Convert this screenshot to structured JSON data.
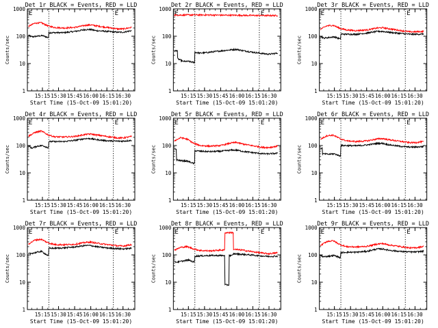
{
  "colors": {
    "events": "#000000",
    "lld": "#ff0000",
    "frame": "#000000",
    "background": "#ffffff"
  },
  "chart_data": [
    {
      "type": "line",
      "title": "Det 1r BLACK = Events, RED = LLD",
      "xlabel": "Start Time (15-Oct-09 15:01:20)",
      "ylabel": "Counts/sec",
      "yscale": "log",
      "ylim": [
        1,
        1000
      ],
      "ytick_labels": [
        "1",
        "10",
        "100",
        "1000"
      ],
      "xlim": [
        "15:01",
        "16:41"
      ],
      "xtick_labels": [
        "15:15",
        "15:30",
        "15:45",
        "16:00",
        "16:15",
        "16:30"
      ],
      "markers": [
        "15:21",
        "16:21"
      ],
      "corner_label": "E",
      "series": [
        {
          "color": "#000000",
          "x": [
            "15:02",
            "15:05",
            "15:10",
            "15:15",
            "15:20",
            "15:21",
            "15:26",
            "15:35",
            "15:45",
            "15:55",
            "16:00",
            "16:05",
            "16:15",
            "16:25",
            "16:30",
            "16:38"
          ],
          "values": [
            110,
            95,
            100,
            105,
            90,
            135,
            135,
            135,
            150,
            175,
            175,
            160,
            150,
            140,
            140,
            160
          ]
        },
        {
          "color": "#ff0000",
          "x": [
            "15:02",
            "15:08",
            "15:14",
            "15:20",
            "15:26",
            "15:35",
            "15:45",
            "15:55",
            "16:00",
            "16:05",
            "16:15",
            "16:25",
            "16:30",
            "16:38"
          ],
          "values": [
            230,
            300,
            310,
            240,
            210,
            200,
            210,
            250,
            260,
            240,
            210,
            185,
            185,
            210
          ]
        }
      ]
    },
    {
      "type": "line",
      "title": "Det 2r BLACK = Events, RED = LLD",
      "xlabel": "Start Time (15-Oct-09 15:01:20)",
      "ylabel": "Counts/sec",
      "yscale": "log",
      "ylim": [
        1,
        1000
      ],
      "ytick_labels": [
        "1",
        "10",
        "100",
        "1000"
      ],
      "xlim": [
        "15:01",
        "16:41"
      ],
      "xtick_labels": [
        "15:15",
        "15:30",
        "15:45",
        "16:00",
        "16:15",
        "16:30"
      ],
      "markers": [
        "15:21",
        "16:21"
      ],
      "corner_label": "E",
      "series": [
        {
          "color": "#000000",
          "x": [
            "15:02",
            "15:04",
            "15:05",
            "15:10",
            "15:15",
            "15:20",
            "15:21",
            "15:26",
            "15:35",
            "15:45",
            "15:55",
            "16:00",
            "16:05",
            "16:15",
            "16:25",
            "16:30",
            "16:38"
          ],
          "values": [
            28,
            30,
            15,
            12,
            12,
            11,
            26,
            24,
            26,
            29,
            32,
            33,
            30,
            26,
            23,
            22,
            24
          ]
        },
        {
          "color": "#ff0000",
          "x": [
            "15:02",
            "15:15",
            "15:30",
            "15:45",
            "16:00",
            "16:15",
            "16:30",
            "16:38"
          ],
          "values": [
            590,
            600,
            600,
            590,
            585,
            575,
            570,
            570
          ]
        }
      ]
    },
    {
      "type": "line",
      "title": "Det 3r BLACK = Events, RED = LLD",
      "xlabel": "Start Time (15-Oct-09 15:01:20)",
      "ylabel": "Counts/sec",
      "yscale": "log",
      "ylim": [
        1,
        1000
      ],
      "ytick_labels": [
        "1",
        "10",
        "100",
        "1000"
      ],
      "xlim": [
        "15:01",
        "16:41"
      ],
      "xtick_labels": [
        "15:15",
        "15:30",
        "15:45",
        "16:00",
        "16:15",
        "16:30"
      ],
      "markers": [
        "15:21",
        "16:21"
      ],
      "corner_label": "E",
      "series": [
        {
          "color": "#000000",
          "x": [
            "15:02",
            "15:05",
            "15:10",
            "15:15",
            "15:20",
            "15:21",
            "15:26",
            "15:35",
            "15:45",
            "15:55",
            "16:00",
            "16:05",
            "16:15",
            "16:25",
            "16:30",
            "16:38"
          ],
          "values": [
            100,
            85,
            90,
            95,
            80,
            120,
            118,
            118,
            130,
            150,
            150,
            140,
            128,
            118,
            118,
            120
          ]
        },
        {
          "color": "#ff0000",
          "x": [
            "15:02",
            "15:08",
            "15:14",
            "15:20",
            "15:26",
            "15:35",
            "15:45",
            "15:55",
            "16:00",
            "16:05",
            "16:15",
            "16:25",
            "16:30",
            "16:38"
          ],
          "values": [
            180,
            240,
            250,
            195,
            170,
            160,
            170,
            200,
            205,
            190,
            165,
            145,
            145,
            150
          ]
        }
      ]
    },
    {
      "type": "line",
      "title": "Det 4r BLACK = Events, RED = LLD",
      "xlabel": "Start Time (15-Oct-09 15:01:20)",
      "ylabel": "Counts/sec",
      "yscale": "log",
      "ylim": [
        1,
        1000
      ],
      "ytick_labels": [
        "1",
        "10",
        "100",
        "1000"
      ],
      "xlim": [
        "15:01",
        "16:41"
      ],
      "xtick_labels": [
        "15:15",
        "15:30",
        "15:45",
        "16:00",
        "16:15",
        "16:30"
      ],
      "markers": [
        "15:21",
        "16:21"
      ],
      "corner_label": "E",
      "series": [
        {
          "color": "#000000",
          "x": [
            "15:02",
            "15:05",
            "15:10",
            "15:15",
            "15:20",
            "15:21",
            "15:26",
            "15:35",
            "15:45",
            "15:55",
            "16:00",
            "16:05",
            "16:15",
            "16:25",
            "16:30",
            "16:38"
          ],
          "values": [
            100,
            80,
            95,
            100,
            85,
            140,
            140,
            140,
            155,
            180,
            180,
            165,
            150,
            145,
            145,
            155
          ]
        },
        {
          "color": "#ff0000",
          "x": [
            "15:02",
            "15:08",
            "15:14",
            "15:20",
            "15:26",
            "15:35",
            "15:45",
            "15:55",
            "16:00",
            "16:05",
            "16:15",
            "16:25",
            "16:30",
            "16:38"
          ],
          "values": [
            220,
            300,
            340,
            250,
            210,
            205,
            215,
            255,
            265,
            245,
            215,
            190,
            190,
            215
          ]
        }
      ]
    },
    {
      "type": "line",
      "title": "Det 5r BLACK = Events, RED = LLD",
      "xlabel": "Start Time (15-Oct-09 15:01:20)",
      "ylabel": "Counts/sec",
      "yscale": "log",
      "ylim": [
        1,
        1000
      ],
      "ytick_labels": [
        "1",
        "10",
        "100",
        "1000"
      ],
      "xlim": [
        "15:01",
        "16:41"
      ],
      "xtick_labels": [
        "15:15",
        "15:30",
        "15:45",
        "16:00",
        "16:15",
        "16:30"
      ],
      "markers": [
        "15:21",
        "16:21"
      ],
      "corner_label": "E",
      "series": [
        {
          "color": "#000000",
          "x": [
            "15:02",
            "15:03",
            "15:04",
            "15:08",
            "15:14",
            "15:20",
            "15:21",
            "15:26",
            "15:35",
            "15:45",
            "15:55",
            "16:00",
            "16:05",
            "16:15",
            "16:25",
            "16:30",
            "16:38"
          ],
          "values": [
            75,
            75,
            30,
            28,
            27,
            22,
            65,
            62,
            60,
            62,
            68,
            68,
            62,
            55,
            50,
            50,
            52
          ]
        },
        {
          "color": "#ff0000",
          "x": [
            "15:02",
            "15:08",
            "15:14",
            "15:20",
            "15:26",
            "15:35",
            "15:45",
            "15:55",
            "16:00",
            "16:05",
            "16:15",
            "16:25",
            "16:30",
            "16:38"
          ],
          "values": [
            150,
            195,
            170,
            120,
            100,
            95,
            100,
            125,
            130,
            115,
            98,
            85,
            85,
            95
          ]
        }
      ]
    },
    {
      "type": "line",
      "title": "Det 6r BLACK = Events, RED = LLD",
      "xlabel": "Start Time (15-Oct-09 15:01:20)",
      "ylabel": "Counts/sec",
      "yscale": "log",
      "ylim": [
        1,
        1000
      ],
      "ytick_labels": [
        "1",
        "10",
        "100",
        "1000"
      ],
      "xlim": [
        "15:01",
        "16:41"
      ],
      "xtick_labels": [
        "15:15",
        "15:30",
        "15:45",
        "16:00",
        "16:15",
        "16:30"
      ],
      "markers": [
        "15:21",
        "16:21"
      ],
      "corner_label": "E",
      "series": [
        {
          "color": "#000000",
          "x": [
            "15:02",
            "15:03",
            "15:04",
            "15:10",
            "15:15",
            "15:20",
            "15:21",
            "15:26",
            "15:35",
            "15:45",
            "15:55",
            "16:00",
            "16:05",
            "16:15",
            "16:25",
            "16:30",
            "16:38"
          ],
          "values": [
            80,
            80,
            50,
            48,
            50,
            42,
            100,
            100,
            98,
            105,
            120,
            120,
            108,
            95,
            88,
            88,
            92
          ]
        },
        {
          "color": "#ff0000",
          "x": [
            "15:02",
            "15:08",
            "15:14",
            "15:20",
            "15:26",
            "15:35",
            "15:45",
            "15:55",
            "16:00",
            "16:05",
            "16:15",
            "16:25",
            "16:30",
            "16:38"
          ],
          "values": [
            170,
            230,
            240,
            180,
            150,
            140,
            148,
            175,
            180,
            165,
            145,
            128,
            128,
            140
          ]
        }
      ]
    },
    {
      "type": "line",
      "title": "Det 7r BLACK = Events, RED = LLD",
      "xlabel": "Start Time (15-Oct-09 15:01:20)",
      "ylabel": "Counts/sec",
      "yscale": "log",
      "ylim": [
        1,
        1000
      ],
      "ytick_labels": [
        "1",
        "10",
        "100",
        "1000"
      ],
      "xlim": [
        "15:01",
        "16:41"
      ],
      "xtick_labels": [
        "15:15",
        "15:30",
        "15:45",
        "16:00",
        "16:15",
        "16:30"
      ],
      "markers": [
        "15:21",
        "16:21"
      ],
      "corner_label": "E",
      "series": [
        {
          "color": "#000000",
          "x": [
            "15:02",
            "15:08",
            "15:14",
            "15:20",
            "15:21",
            "15:26",
            "15:35",
            "15:45",
            "15:55",
            "16:00",
            "16:05",
            "16:15",
            "16:25",
            "16:30",
            "16:38"
          ],
          "values": [
            110,
            120,
            135,
            95,
            175,
            175,
            180,
            195,
            220,
            220,
            200,
            180,
            170,
            165,
            175
          ]
        },
        {
          "color": "#ff0000",
          "x": [
            "15:02",
            "15:08",
            "15:14",
            "15:20",
            "15:26",
            "15:35",
            "15:45",
            "15:55",
            "16:00",
            "16:05",
            "16:15",
            "16:25",
            "16:30",
            "16:38"
          ],
          "values": [
            250,
            350,
            370,
            280,
            240,
            235,
            245,
            285,
            295,
            270,
            240,
            215,
            210,
            240
          ]
        }
      ]
    },
    {
      "type": "line",
      "title": "Det 8r BLACK = Events, RED = LLD",
      "xlabel": "Start Time (15-Oct-09 15:01:20)",
      "ylabel": "Counts/sec",
      "yscale": "log",
      "ylim": [
        1,
        1000
      ],
      "ytick_labels": [
        "1",
        "10",
        "100",
        "1000"
      ],
      "xlim": [
        "15:01",
        "16:41"
      ],
      "xtick_labels": [
        "15:15",
        "15:30",
        "15:45",
        "16:00",
        "16:15",
        "16:30"
      ],
      "markers": [
        "15:21",
        "16:21"
      ],
      "corner_label": "E",
      "series": [
        {
          "color": "#000000",
          "x": [
            "15:02",
            "15:05",
            "15:10",
            "15:15",
            "15:20",
            "15:21",
            "15:26",
            "15:35",
            "15:45",
            "15:48",
            "15:49",
            "15:52",
            "15:53",
            "15:56",
            "15:57",
            "16:05",
            "16:15",
            "16:25",
            "16:30",
            "16:38"
          ],
          "values": [
            55,
            55,
            60,
            65,
            55,
            90,
            92,
            95,
            95,
            95,
            8,
            8,
            95,
            95,
            110,
            105,
            98,
            90,
            88,
            90
          ]
        },
        {
          "color": "#ff0000",
          "x": [
            "15:02",
            "15:08",
            "15:14",
            "15:20",
            "15:26",
            "15:35",
            "15:45",
            "15:48",
            "15:49",
            "15:56",
            "15:57",
            "16:05",
            "16:15",
            "16:25",
            "16:30",
            "16:38"
          ],
          "values": [
            150,
            190,
            200,
            165,
            145,
            140,
            150,
            150,
            650,
            650,
            160,
            150,
            130,
            115,
            110,
            120
          ]
        }
      ]
    },
    {
      "type": "line",
      "title": "Det 9r BLACK = Events, RED = LLD",
      "xlabel": "Start Time (15-Oct-09 15:01:20)",
      "ylabel": "Counts/sec",
      "yscale": "log",
      "ylim": [
        1,
        1000
      ],
      "ytick_labels": [
        "1",
        "10",
        "100",
        "1000"
      ],
      "xlim": [
        "15:01",
        "16:41"
      ],
      "xtick_labels": [
        "15:15",
        "15:30",
        "15:45",
        "16:00",
        "16:15",
        "16:30"
      ],
      "markers": [
        "15:21",
        "16:21"
      ],
      "corner_label": "E",
      "series": [
        {
          "color": "#000000",
          "x": [
            "15:02",
            "15:05",
            "15:10",
            "15:15",
            "15:20",
            "15:21",
            "15:26",
            "15:35",
            "15:45",
            "15:55",
            "16:00",
            "16:05",
            "16:15",
            "16:25",
            "16:30",
            "16:38"
          ],
          "values": [
            95,
            85,
            90,
            95,
            80,
            120,
            125,
            125,
            135,
            165,
            165,
            150,
            135,
            128,
            128,
            135
          ]
        },
        {
          "color": "#ff0000",
          "x": [
            "15:02",
            "15:08",
            "15:14",
            "15:20",
            "15:26",
            "15:35",
            "15:45",
            "15:55",
            "16:00",
            "16:05",
            "16:15",
            "16:25",
            "16:30",
            "16:38"
          ],
          "values": [
            220,
            310,
            330,
            240,
            200,
            195,
            205,
            250,
            260,
            235,
            205,
            180,
            180,
            205
          ]
        }
      ]
    }
  ]
}
